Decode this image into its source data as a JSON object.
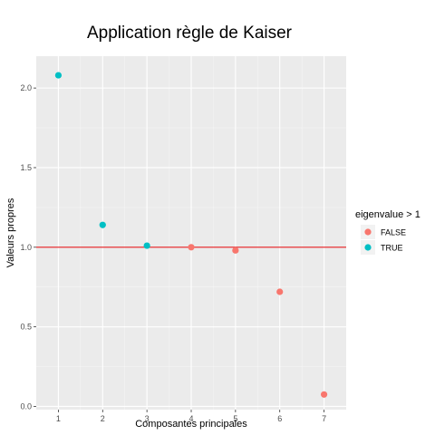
{
  "chart_data": {
    "type": "scatter",
    "title": "Application règle de Kaiser",
    "xlabel": "Composantes principales",
    "ylabel": "Valeurs propres",
    "x_ticks": [
      1,
      2,
      3,
      4,
      5,
      6,
      7
    ],
    "y_ticks": [
      "0.0",
      "0.5",
      "1.0",
      "1.5",
      "2.0"
    ],
    "xlim": [
      0.5,
      7.5
    ],
    "ylim": [
      -0.02,
      2.2
    ],
    "grid": true,
    "reference_line": {
      "y": 1.0,
      "color": "#e31a1c"
    },
    "legend": {
      "title": "eigenvalue > 1",
      "placement": "right",
      "entries": [
        {
          "label": "FALSE",
          "color": "#F8766D"
        },
        {
          "label": "TRUE",
          "color": "#00BFC4"
        }
      ]
    },
    "series": [
      {
        "name": "FALSE",
        "color": "#F8766D",
        "x": [
          4,
          5,
          6,
          7
        ],
        "y": [
          1.0,
          0.98,
          0.72,
          0.075
        ]
      },
      {
        "name": "TRUE",
        "color": "#00BFC4",
        "x": [
          1,
          2,
          3
        ],
        "y": [
          2.08,
          1.14,
          1.01
        ]
      }
    ]
  }
}
